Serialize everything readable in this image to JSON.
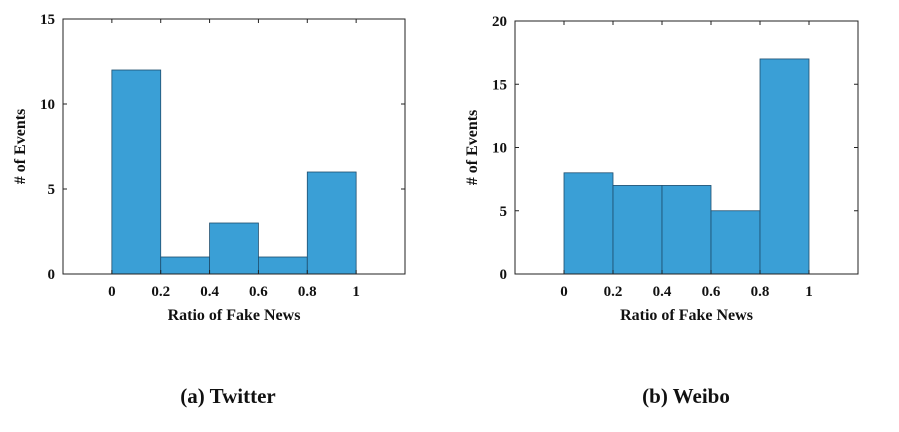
{
  "colors": {
    "bar": "#3a9fd6"
  },
  "chart_data": [
    {
      "type": "bar",
      "caption": "(a) Twitter",
      "bin_edges": [
        0,
        0.2,
        0.4,
        0.6,
        0.8,
        1
      ],
      "values": [
        12,
        1,
        3,
        1,
        6
      ],
      "xlabel": "Ratio of Fake News",
      "ylabel": "# of Events",
      "xlim": [
        -0.2,
        1.2
      ],
      "ylim": [
        0,
        15
      ],
      "xticks": [
        "0",
        "0.2",
        "0.4",
        "0.6",
        "0.8",
        "1"
      ],
      "yticks": [
        "0",
        "5",
        "10",
        "15"
      ],
      "grid": false
    },
    {
      "type": "bar",
      "caption": "(b) Weibo",
      "bin_edges": [
        0,
        0.2,
        0.4,
        0.6,
        0.8,
        1
      ],
      "values": [
        8,
        7,
        7,
        5,
        17
      ],
      "xlabel": "Ratio of Fake News",
      "ylabel": "# of Events",
      "xlim": [
        -0.2,
        1.2
      ],
      "ylim": [
        0,
        20
      ],
      "xticks": [
        "0",
        "0.2",
        "0.4",
        "0.6",
        "0.8",
        "1"
      ],
      "yticks": [
        "0",
        "5",
        "10",
        "15",
        "20"
      ],
      "grid": false
    }
  ]
}
